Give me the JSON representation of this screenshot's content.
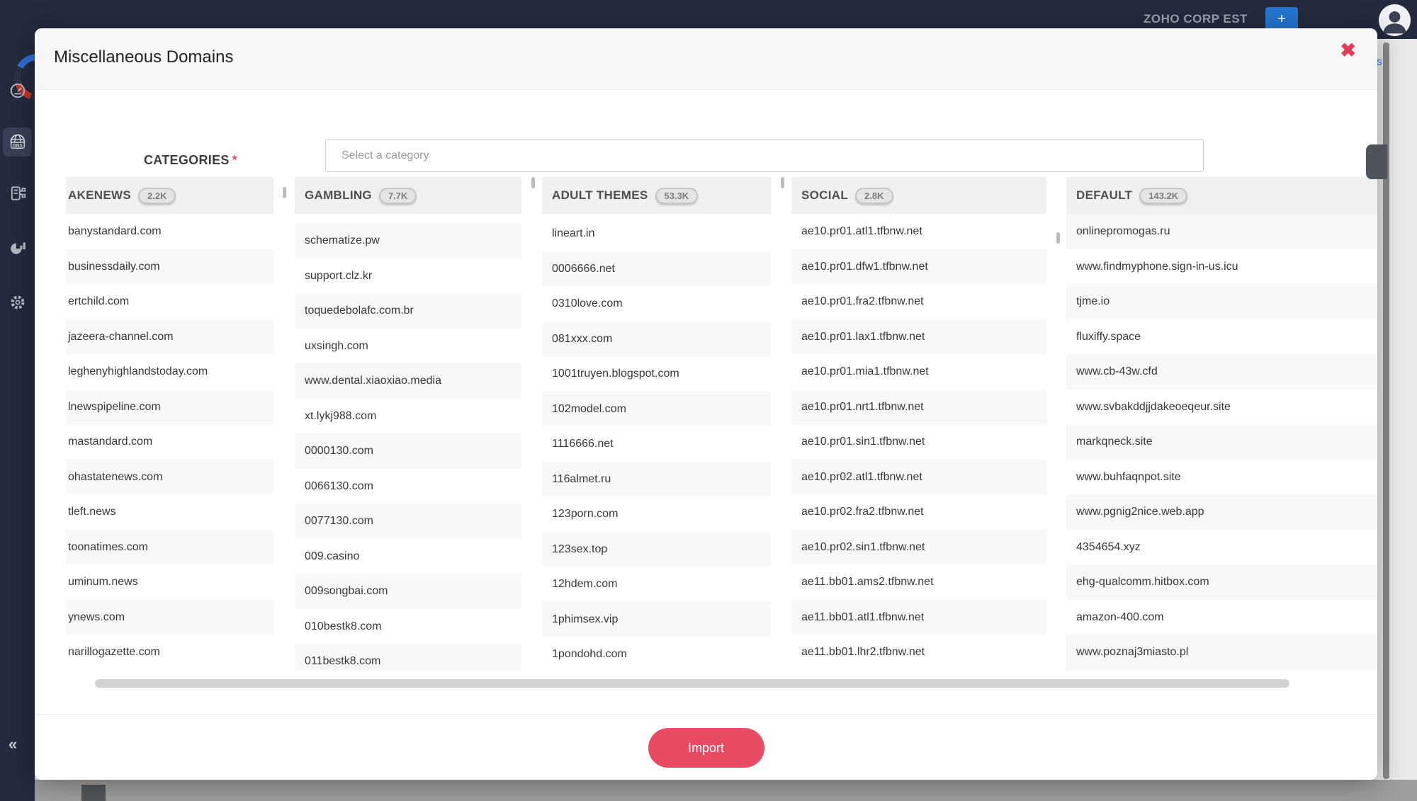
{
  "topbar": {
    "org_label": "ZOHO CORP EST",
    "add_button_label": "+",
    "help_text_fragment": "s?"
  },
  "sidebar": {
    "dns_label": "DNS",
    "collapse_label": "«",
    "icons": [
      {
        "name": "dashboard-gauge-icon",
        "active": false
      },
      {
        "name": "dns-globe-icon",
        "active": true
      },
      {
        "name": "report-icon",
        "active": false
      },
      {
        "name": "analytics-icon",
        "active": false
      },
      {
        "name": "settings-tools-icon",
        "active": false
      }
    ]
  },
  "modal": {
    "title": "Miscellaneous Domains",
    "close_icon": "✖",
    "categories_label": "CATEGORIES",
    "required_marker": "*",
    "category_placeholder": "Select a category",
    "import_label": "Import",
    "accent_color": "#e84b64"
  },
  "columns": [
    {
      "name": "AKENEWS",
      "count": "2.2K",
      "items": [
        "banystandard.com",
        "businessdaily.com",
        "ertchild.com",
        "jazeera-channel.com",
        "leghenyhighlandstoday.com",
        "lnewspipeline.com",
        "mastandard.com",
        "ohastatenews.com",
        "tleft.news",
        "toonatimes.com",
        "uminum.news",
        "ynews.com",
        "narillogazette.com"
      ]
    },
    {
      "name": "GAMBLING",
      "count": "7.7K",
      "items": [
        "schematize.pw",
        "support.clz.kr",
        "toquedebolafc.com.br",
        "uxsingh.com",
        "www.dental.xiaoxiao.media",
        "xt.lykj988.com",
        "0000130.com",
        "0066130.com",
        "0077130.com",
        "009.casino",
        "009songbai.com",
        "010bestk8.com",
        "011bestk8.com"
      ]
    },
    {
      "name": "ADULT THEMES",
      "count": "53.3K",
      "items": [
        "lineart.in",
        "0006666.net",
        "0310love.com",
        "081xxx.com",
        "1001truyen.blogspot.com",
        "102model.com",
        "1116666.net",
        "116almet.ru",
        "123porn.com",
        "123sex.top",
        "12hdem.com",
        "1phimsex.vip",
        "1pondohd.com"
      ]
    },
    {
      "name": "SOCIAL",
      "count": "2.8K",
      "items": [
        "ae10.pr01.atl1.tfbnw.net",
        "ae10.pr01.dfw1.tfbnw.net",
        "ae10.pr01.fra2.tfbnw.net",
        "ae10.pr01.lax1.tfbnw.net",
        "ae10.pr01.mia1.tfbnw.net",
        "ae10.pr01.nrt1.tfbnw.net",
        "ae10.pr01.sin1.tfbnw.net",
        "ae10.pr02.atl1.tfbnw.net",
        "ae10.pr02.fra2.tfbnw.net",
        "ae10.pr02.sin1.tfbnw.net",
        "ae11.bb01.ams2.tfbnw.net",
        "ae11.bb01.atl1.tfbnw.net",
        "ae11.bb01.lhr2.tfbnw.net"
      ]
    },
    {
      "name": "DEFAULT",
      "count": "143.2K",
      "items": [
        "onlinepromogas.ru",
        "www.findmyphone.sign-in-us.icu",
        "tjme.io",
        "fluxiffy.space",
        "www.cb-43w.cfd",
        "www.svbakddjjdakeoeqeur.site",
        "markqneck.site",
        "www.buhfaqnpot.site",
        "www.pgnig2nice.web.app",
        "4354654.xyz",
        "ehg-qualcomm.hitbox.com",
        "amazon-400.com",
        "www.poznaj3miasto.pl"
      ]
    }
  ]
}
